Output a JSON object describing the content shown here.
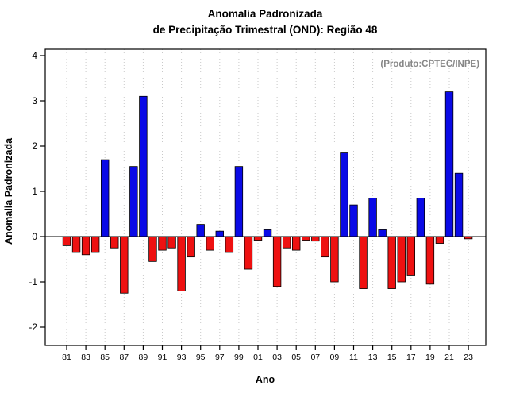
{
  "title": {
    "line1": "Anomalia Padronizada",
    "line2": "de Precipitação Trimestral (OND): Região 48"
  },
  "annotation": "(Produto:CPTEC/INPE)",
  "chart_data": {
    "type": "bar",
    "title": "Anomalia Padronizada de Precipitação Trimestral (OND): Região 48",
    "xlabel": "Ano",
    "ylabel": "Anomalia Padronizada",
    "ylim": [
      -2,
      4
    ],
    "yticks": [
      -2,
      -1,
      0,
      1,
      2,
      3,
      4
    ],
    "grid": "vertical-dotted",
    "legend": "none",
    "positive_color": "#0a0ae6",
    "negative_color": "#ee1111",
    "bar_outline_color": "#000000",
    "x_tick_labels": [
      "81",
      "83",
      "85",
      "87",
      "89",
      "91",
      "93",
      "95",
      "97",
      "99",
      "01",
      "03",
      "05",
      "07",
      "09",
      "11",
      "13",
      "15",
      "17",
      "19",
      "21",
      "23"
    ],
    "categories": [
      "81",
      "82",
      "83",
      "84",
      "85",
      "86",
      "87",
      "88",
      "89",
      "90",
      "91",
      "92",
      "93",
      "94",
      "95",
      "96",
      "97",
      "98",
      "99",
      "00",
      "01",
      "02",
      "03",
      "04",
      "05",
      "06",
      "07",
      "08",
      "09",
      "10",
      "11",
      "12",
      "13",
      "14",
      "15",
      "16",
      "17",
      "18",
      "19",
      "20",
      "21",
      "22",
      "23"
    ],
    "values": [
      -0.2,
      -0.35,
      -0.4,
      -0.35,
      1.7,
      -0.25,
      -1.25,
      1.55,
      3.1,
      -0.55,
      -0.3,
      -0.25,
      -1.2,
      -0.45,
      0.27,
      -0.3,
      0.12,
      -0.35,
      1.55,
      -0.72,
      -0.08,
      0.15,
      -1.1,
      -0.25,
      -0.3,
      -0.08,
      -0.1,
      -0.45,
      -1.0,
      1.85,
      0.7,
      -1.15,
      0.85,
      0.15,
      -1.15,
      -1.0,
      -0.85,
      0.85,
      -1.05,
      -0.15,
      3.2,
      1.4,
      -0.05
    ]
  },
  "colors": {
    "gridline": "#c9c9c9",
    "annotation_text": "#878787",
    "axis": "#000000",
    "background": "#ffffff"
  }
}
